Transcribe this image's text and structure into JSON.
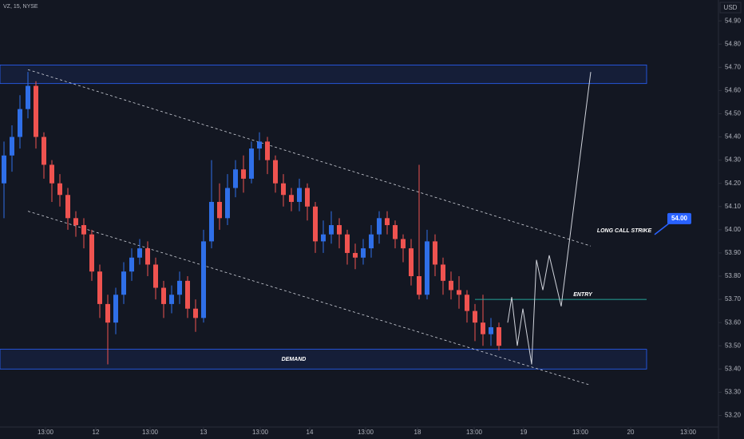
{
  "chart_data": {
    "type": "candlestick",
    "ticker": "VZ, 15, NYSE",
    "currency": "USD",
    "up_color": "#2f6fe8",
    "down_color": "#ef5350",
    "xlim": [
      0,
      180
    ],
    "ylim": [
      53.15,
      54.99
    ],
    "xticks": [
      {
        "value": 11.4,
        "label": "13:00"
      },
      {
        "value": 24,
        "label": "12"
      },
      {
        "value": 37.6,
        "label": "13:00"
      },
      {
        "value": 51,
        "label": "13"
      },
      {
        "value": 65.2,
        "label": "13:00"
      },
      {
        "value": 77.6,
        "label": "14"
      },
      {
        "value": 91.6,
        "label": "13:00"
      },
      {
        "value": 104.6,
        "label": "18"
      },
      {
        "value": 118.8,
        "label": "13:00"
      },
      {
        "value": 131.2,
        "label": "19"
      },
      {
        "value": 145.4,
        "label": "13:00"
      },
      {
        "value": 158,
        "label": "20"
      },
      {
        "value": 172.4,
        "label": "13:00"
      }
    ],
    "yticks": [
      {
        "value": 53.2,
        "label": "53.20"
      },
      {
        "value": 53.3,
        "label": "53.30"
      },
      {
        "value": 53.4,
        "label": "53.40"
      },
      {
        "value": 53.5,
        "label": "53.50"
      },
      {
        "value": 53.6,
        "label": "53.60"
      },
      {
        "value": 53.7,
        "label": "53.70"
      },
      {
        "value": 53.8,
        "label": "53.80"
      },
      {
        "value": 53.9,
        "label": "53.90"
      },
      {
        "value": 54,
        "label": "54.00"
      },
      {
        "value": 54.1,
        "label": "54.10"
      },
      {
        "value": 54.2,
        "label": "54.20"
      },
      {
        "value": 54.3,
        "label": "54.30"
      },
      {
        "value": 54.4,
        "label": "54.40"
      },
      {
        "value": 54.5,
        "label": "54.50"
      },
      {
        "value": 54.6,
        "label": "54.60"
      },
      {
        "value": 54.7,
        "label": "54.70"
      },
      {
        "value": 54.8,
        "label": "54.80"
      },
      {
        "value": 54.9,
        "label": "54.90"
      }
    ],
    "x": [
      1,
      3,
      5,
      7,
      9,
      11,
      13,
      15,
      17,
      19,
      21,
      23,
      25,
      27,
      29,
      31,
      33,
      35,
      37,
      39,
      41,
      43,
      45,
      47,
      49,
      51,
      53,
      55,
      57,
      59,
      61,
      63,
      65,
      67,
      69,
      71,
      73,
      75,
      77,
      79,
      81,
      83,
      85,
      87,
      89,
      91,
      93,
      95,
      97,
      99,
      101,
      103,
      105,
      107,
      109,
      111,
      113,
      115,
      117,
      119,
      121,
      123,
      125
    ],
    "open": [
      54.2,
      54.32,
      54.4,
      54.52,
      54.62,
      54.4,
      54.28,
      54.2,
      54.15,
      54.05,
      54.02,
      53.98,
      53.82,
      53.68,
      53.6,
      53.72,
      53.82,
      53.88,
      53.92,
      53.85,
      53.75,
      53.68,
      53.72,
      53.78,
      53.66,
      53.62,
      53.95,
      54.12,
      54.05,
      54.18,
      54.26,
      54.22,
      54.35,
      54.38,
      54.3,
      54.2,
      54.15,
      54.12,
      54.18,
      54.1,
      53.95,
      53.98,
      54.02,
      53.98,
      53.9,
      53.88,
      53.92,
      53.98,
      54.05,
      54.02,
      53.96,
      53.92,
      53.8,
      53.72,
      53.95,
      53.85,
      53.78,
      53.74,
      53.72,
      53.65,
      53.6,
      53.55,
      53.58
    ],
    "high": [
      54.38,
      54.45,
      54.58,
      54.68,
      54.64,
      54.42,
      54.3,
      54.24,
      54.18,
      54.08,
      54.05,
      54.0,
      53.85,
      53.72,
      53.75,
      53.86,
      53.92,
      53.96,
      53.95,
      53.88,
      53.78,
      53.76,
      53.82,
      53.8,
      53.7,
      54.0,
      54.3,
      54.2,
      54.24,
      54.3,
      54.32,
      54.38,
      54.42,
      54.4,
      54.32,
      54.24,
      54.18,
      54.22,
      54.2,
      54.12,
      54.04,
      54.08,
      54.05,
      54.0,
      53.94,
      53.96,
      54.02,
      54.08,
      54.08,
      54.04,
      53.98,
      53.96,
      54.28,
      54.0,
      53.98,
      53.88,
      53.82,
      53.8,
      53.74,
      53.68,
      53.72,
      53.62,
      53.6
    ],
    "low": [
      54.05,
      54.25,
      54.35,
      54.48,
      54.35,
      54.22,
      54.12,
      54.1,
      54.0,
      53.97,
      53.92,
      53.78,
      53.62,
      53.42,
      53.55,
      53.68,
      53.78,
      53.85,
      53.8,
      53.7,
      53.62,
      53.64,
      53.68,
      53.62,
      53.56,
      53.6,
      53.92,
      54.0,
      54.02,
      54.14,
      54.16,
      54.2,
      54.3,
      54.24,
      54.16,
      54.1,
      54.08,
      54.08,
      54.04,
      53.9,
      53.9,
      53.94,
      53.92,
      53.85,
      53.83,
      53.85,
      53.88,
      53.94,
      53.98,
      53.92,
      53.86,
      53.76,
      53.7,
      53.7,
      53.8,
      53.72,
      53.7,
      53.66,
      53.6,
      53.52,
      53.5,
      53.5,
      53.48
    ],
    "close": [
      54.32,
      54.4,
      54.52,
      54.62,
      54.4,
      54.28,
      54.2,
      54.15,
      54.05,
      54.02,
      53.98,
      53.82,
      53.68,
      53.6,
      53.72,
      53.82,
      53.88,
      53.92,
      53.85,
      53.75,
      53.68,
      53.72,
      53.78,
      53.66,
      53.62,
      53.95,
      54.12,
      54.05,
      54.18,
      54.26,
      54.22,
      54.35,
      54.38,
      54.3,
      54.2,
      54.15,
      54.12,
      54.18,
      54.1,
      53.95,
      53.98,
      54.02,
      53.98,
      53.9,
      53.88,
      53.92,
      53.98,
      54.05,
      54.02,
      53.96,
      53.92,
      53.8,
      53.72,
      53.95,
      53.85,
      53.78,
      53.74,
      53.72,
      53.65,
      53.6,
      53.55,
      53.58,
      53.5
    ],
    "zones": [
      {
        "x": [
          0,
          162
        ],
        "y": [
          54.63,
          54.71
        ]
      },
      {
        "label": "DEMAND",
        "x": [
          0,
          162
        ],
        "y": [
          53.4,
          53.485
        ]
      }
    ],
    "channel": [
      {
        "x": [
          7,
          148
        ],
        "y": [
          54.69,
          53.93
        ]
      },
      {
        "x": [
          7,
          148
        ],
        "y": [
          54.08,
          53.33
        ]
      }
    ],
    "entry": {
      "label": "ENTRY",
      "value": 53.7,
      "x": [
        119,
        162
      ]
    },
    "projection": {
      "x": [
        127.2,
        128.2,
        129.6,
        131,
        133.2,
        134.4,
        136,
        137.6,
        140.6,
        148
      ],
      "y": [
        53.6,
        53.71,
        53.5,
        53.66,
        53.42,
        53.87,
        53.74,
        53.89,
        53.67,
        54.68
      ]
    },
    "strike": {
      "label": "LONG CALL STRIKE",
      "badge": {
        "value": 54,
        "label": "54.00"
      }
    }
  }
}
